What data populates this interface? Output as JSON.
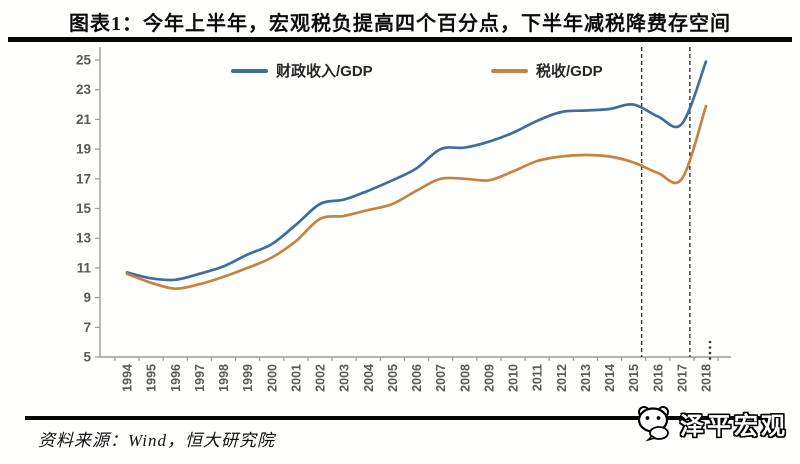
{
  "page": {
    "title": "图表1：今年上半年，宏观税负提高四个百分点，下半年减税降费存空间",
    "source_text": "资料来源：Wind，恒大研究院",
    "logo_text": "泽平宏观"
  },
  "chart_data": {
    "type": "line",
    "title": "图表1：今年上半年，宏观税负提高四个百分点，下半年减税降费存空间",
    "x": [
      "1994",
      "1995",
      "1996",
      "1997",
      "1998",
      "1999",
      "2000",
      "2001",
      "2002",
      "2003",
      "2004",
      "2005",
      "2006",
      "2007",
      "2008",
      "2009",
      "2010",
      "2011",
      "2012",
      "2013",
      "2014",
      "2015",
      "2016",
      "2017",
      "2018"
    ],
    "series": [
      {
        "name": "财政收入/GDP",
        "color": "#3E6E9F",
        "values": [
          10.7,
          10.3,
          10.2,
          10.6,
          11.1,
          11.9,
          12.6,
          13.9,
          15.3,
          15.6,
          16.2,
          16.9,
          17.7,
          19.0,
          19.1,
          19.5,
          20.1,
          20.9,
          21.5,
          21.6,
          21.7,
          22.0,
          21.2,
          20.7,
          24.9
        ]
      },
      {
        "name": "税收/GDP",
        "color": "#C8813F",
        "values": [
          10.6,
          10.0,
          9.6,
          9.9,
          10.4,
          11.0,
          11.7,
          12.8,
          14.3,
          14.5,
          14.9,
          15.3,
          16.2,
          17.0,
          17.0,
          16.9,
          17.5,
          18.2,
          18.5,
          18.6,
          18.5,
          18.1,
          17.4,
          17.0,
          21.9
        ]
      }
    ],
    "xlabel": "",
    "ylabel": "",
    "ylim": [
      5,
      25
    ],
    "ytick_step": 2,
    "grid": false,
    "legend_position": "top",
    "line_style": "smooth",
    "axis_color": "#9a9a9a",
    "tick_label_color": "#595959",
    "annotations": {
      "dashed_vlines_at_years": [
        "2015",
        "2017"
      ],
      "axis_end_dotted_marker": true
    }
  }
}
